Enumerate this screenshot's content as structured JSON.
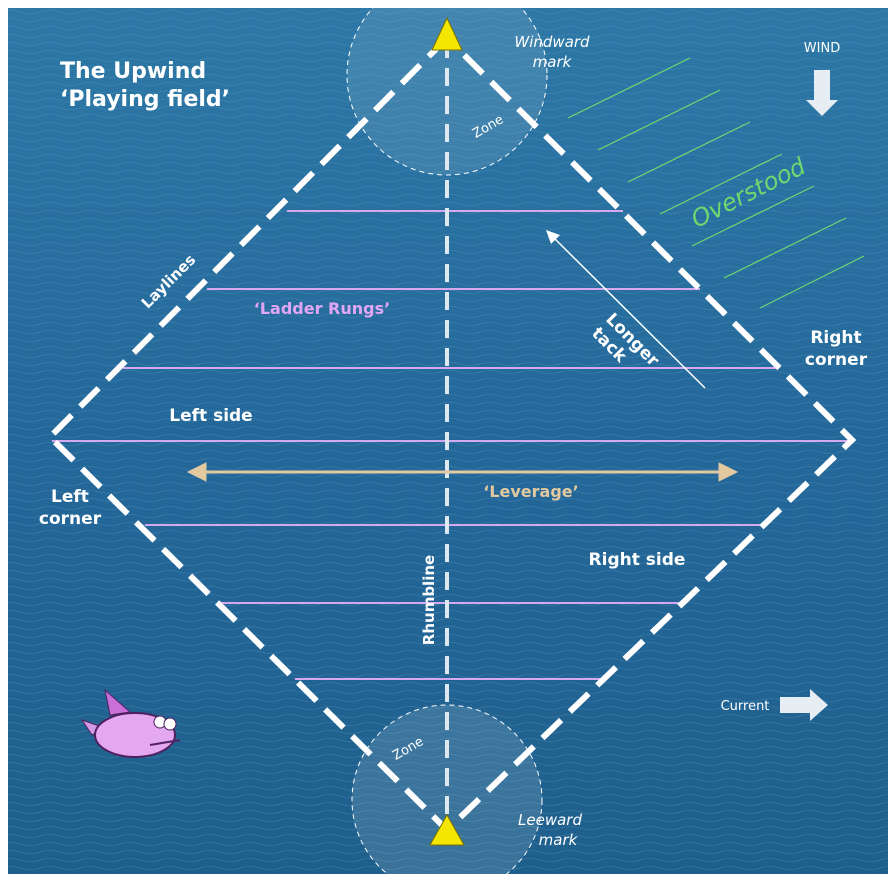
{
  "title": {
    "lines": [
      "The Upwind",
      "‘Playing field’"
    ]
  },
  "labels": {
    "windward_mark": [
      "Windward",
      "mark"
    ],
    "wind": "WIND",
    "zone_top": "Zone",
    "overstood": "Overstood",
    "laylines": "Laylines",
    "ladder_rungs": "‘Ladder Rungs’",
    "longer_tack": [
      "Longer",
      "tack"
    ],
    "right_corner": [
      "Right",
      "corner"
    ],
    "left_side": "Left side",
    "leverage": "‘Leverage’",
    "left_corner": [
      "Left",
      "corner"
    ],
    "rhumbline": "Rhumbline",
    "right_side": "Right side",
    "current": "Current",
    "zone_bottom": "Zone",
    "leeward_mark": [
      "Leeward",
      "mark"
    ]
  }
}
